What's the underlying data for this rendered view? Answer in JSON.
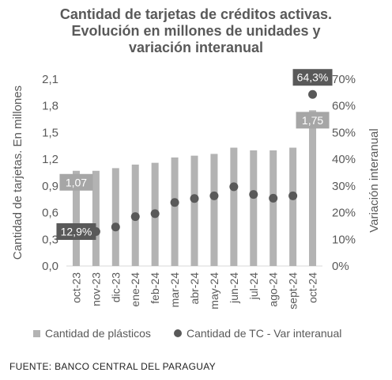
{
  "title_lines": [
    "Cantidad de tarjetas de créditos activas.",
    "Evolución en millones de unidades y",
    "variación interanual"
  ],
  "source": "FUENTE: BANCO CENTRAL DEL PARAGUAY",
  "colors": {
    "bar": "#b3b3b3",
    "dot": "#595959",
    "label_bg": "#a6a6a6",
    "dark_label_bg": "#595959",
    "label_text": "#ffffff"
  },
  "chart_data": {
    "type": "bar",
    "categories": [
      "oct-23",
      "nov-23",
      "dic-23",
      "ene-24",
      "feb-24",
      "mar-24",
      "abr-24",
      "may-24",
      "jun-24",
      "jul-24",
      "ago-24",
      "sept-24",
      "oct-24"
    ],
    "series": [
      {
        "name": "Cantidad de plásticos",
        "type": "bar",
        "axis": "left",
        "values": [
          1.07,
          1.07,
          1.1,
          1.14,
          1.16,
          1.22,
          1.24,
          1.26,
          1.33,
          1.3,
          1.3,
          1.33,
          1.75
        ]
      },
      {
        "name": "Cantidad de TC - Var interanual",
        "type": "scatter",
        "axis": "right",
        "values": [
          12.9,
          12.9,
          14.6,
          18.5,
          19.6,
          23.8,
          25.3,
          26.3,
          29.7,
          26.8,
          25.4,
          26.3,
          64.3
        ]
      }
    ],
    "ylabel": "Cantidad de tarjetas. En millones",
    "y2label": "Variación interanual",
    "ylim": [
      0,
      2.1
    ],
    "y_ticks": [
      "0,0",
      "0,3",
      "0,6",
      "0,9",
      "1,2",
      "1,5",
      "1,8",
      "2,1"
    ],
    "y2lim": [
      0,
      70
    ],
    "y2_ticks": [
      "0%",
      "10%",
      "20%",
      "30%",
      "40%",
      "50%",
      "60%",
      "70%"
    ],
    "grid": false,
    "legend_position": "bottom",
    "data_labels": [
      {
        "series": 0,
        "index": 0,
        "text": "1,07"
      },
      {
        "series": 0,
        "index": 12,
        "text": "1,75"
      },
      {
        "series": 1,
        "index": 0,
        "text": "12,9%"
      },
      {
        "series": 1,
        "index": 12,
        "text": "64,3%"
      }
    ]
  }
}
